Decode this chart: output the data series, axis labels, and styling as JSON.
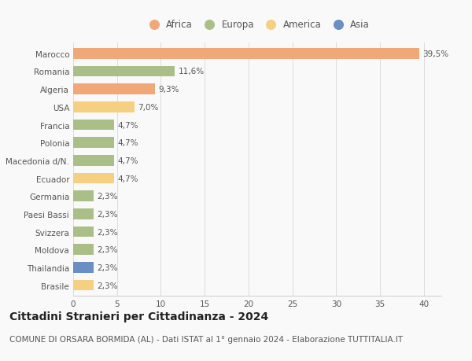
{
  "countries": [
    "Marocco",
    "Romania",
    "Algeria",
    "USA",
    "Francia",
    "Polonia",
    "Macedonia d/N.",
    "Ecuador",
    "Germania",
    "Paesi Bassi",
    "Svizzera",
    "Moldova",
    "Thailandia",
    "Brasile"
  ],
  "values": [
    39.5,
    11.6,
    9.3,
    7.0,
    4.7,
    4.7,
    4.7,
    4.7,
    2.3,
    2.3,
    2.3,
    2.3,
    2.3,
    2.3
  ],
  "labels": [
    "39,5%",
    "11,6%",
    "9,3%",
    "7,0%",
    "4,7%",
    "4,7%",
    "4,7%",
    "4,7%",
    "2,3%",
    "2,3%",
    "2,3%",
    "2,3%",
    "2,3%",
    "2,3%"
  ],
  "continents": [
    "Africa",
    "Europa",
    "Africa",
    "America",
    "Europa",
    "Europa",
    "Europa",
    "America",
    "Europa",
    "Europa",
    "Europa",
    "Europa",
    "Asia",
    "America"
  ],
  "colors": {
    "Africa": "#F0A878",
    "Europa": "#AABF88",
    "America": "#F5D080",
    "Asia": "#6B8EC4"
  },
  "legend_order": [
    "Africa",
    "Europa",
    "America",
    "Asia"
  ],
  "xlim": [
    0,
    42
  ],
  "xticks": [
    0,
    5,
    10,
    15,
    20,
    25,
    30,
    35,
    40
  ],
  "title": "Cittadini Stranieri per Cittadinanza - 2024",
  "subtitle": "COMUNE DI ORSARA BORMIDA (AL) - Dati ISTAT al 1° gennaio 2024 - Elaborazione TUTTITALIA.IT",
  "bg_color": "#f9f9f9",
  "bar_height": 0.6,
  "title_fontsize": 10,
  "subtitle_fontsize": 7.5,
  "label_fontsize": 7.5,
  "tick_fontsize": 7.5,
  "legend_fontsize": 8.5
}
